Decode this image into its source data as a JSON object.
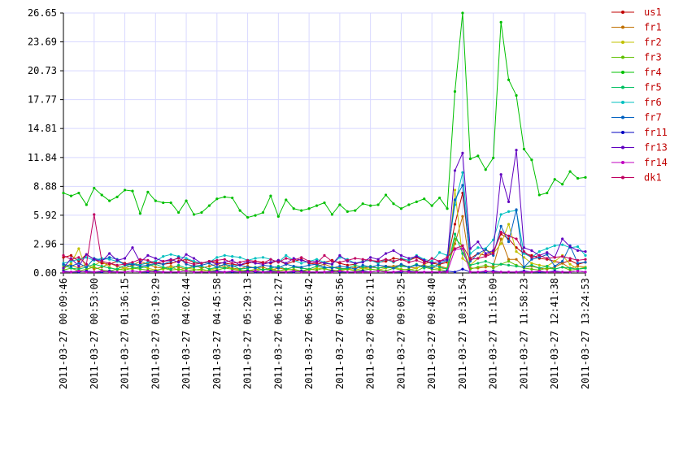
{
  "chart_data": {
    "type": "line",
    "categories": [
      "2011-03-27 00:09:46",
      null,
      null,
      null,
      "2011-03-27 00:53:00",
      null,
      null,
      null,
      "2011-03-27 01:36:15",
      null,
      null,
      null,
      "2011-03-27 03:19:29",
      null,
      null,
      null,
      "2011-03-27 04:02:44",
      null,
      null,
      null,
      "2011-03-27 04:45:58",
      null,
      null,
      null,
      "2011-03-27 05:29:13",
      null,
      null,
      null,
      "2011-03-27 06:12:27",
      null,
      null,
      null,
      "2011-03-27 06:55:42",
      null,
      null,
      null,
      "2011-03-27 07:38:56",
      null,
      null,
      null,
      "2011-03-27 08:22:11",
      null,
      null,
      null,
      "2011-03-27 09:05:25",
      null,
      null,
      null,
      "2011-03-27 09:48:40",
      null,
      null,
      null,
      "2011-03-27 10:31:54",
      null,
      null,
      null,
      "2011-03-27 11:15:09",
      null,
      null,
      null,
      "2011-03-27 11:58:23",
      null,
      null,
      null,
      "2011-03-27 12:41:38",
      null,
      null,
      null,
      "2011-03-27 13:24:53"
    ],
    "ylim": [
      0,
      26.65
    ],
    "yticks": [
      {
        "value": 0,
        "label": "0.00"
      },
      2.96,
      5.92,
      8.88,
      11.84,
      14.81,
      17.77,
      20.73,
      23.69,
      26.65
    ],
    "grid": true,
    "series": [
      {
        "name": "us1",
        "color": "#c00000",
        "values": [
          1.6,
          1.8,
          1.2,
          1.9,
          1.4,
          1.0,
          0.9,
          1.2,
          1.0,
          0.8,
          0.9,
          1.0,
          1.1,
          0.9,
          1.0,
          1.2,
          1.4,
          1.1,
          1.0,
          1.2,
          1.1,
          1.0,
          0.9,
          0.8,
          1.0,
          1.2,
          1.1,
          1.0,
          1.3,
          0.9,
          1.2,
          1.4,
          1.0,
          0.9,
          1.1,
          1.3,
          1.0,
          0.8,
          0.9,
          1.2,
          1.3,
          1.1,
          1.2,
          1.5,
          1.4,
          1.3,
          1.6,
          1.2,
          1.0,
          0.9,
          1.1,
          5.0,
          8.2,
          1.5,
          2.0,
          1.8,
          2.2,
          4.0,
          3.5,
          2.6,
          2.0,
          1.8,
          1.5,
          1.4,
          1.2,
          1.0,
          1.3,
          0.9,
          1.1
        ]
      },
      {
        "name": "fr1",
        "color": "#c07000",
        "values": [
          0.6,
          0.8,
          0.5,
          0.9,
          0.4,
          0.6,
          1.0,
          0.7,
          0.5,
          0.8,
          1.2,
          0.9,
          0.6,
          0.5,
          0.7,
          0.6,
          0.4,
          0.8,
          0.5,
          0.7,
          0.9,
          0.6,
          0.5,
          0.4,
          0.7,
          0.5,
          0.6,
          0.3,
          0.5,
          0.4,
          0.6,
          0.5,
          0.4,
          0.7,
          0.9,
          0.6,
          0.5,
          0.4,
          0.6,
          0.5,
          0.6,
          0.5,
          0.7,
          0.7,
          0.8,
          0.6,
          0.5,
          0.9,
          1.2,
          0.7,
          0.5,
          3.0,
          5.8,
          0.5,
          0.5,
          0.6,
          0.7,
          3.5,
          1.4,
          1.4,
          0.6,
          0.7,
          0.5,
          0.4,
          0.6,
          1.0,
          0.5,
          0.7,
          0.6
        ]
      },
      {
        "name": "fr2",
        "color": "#c0c000",
        "values": [
          0.4,
          1.0,
          2.5,
          0.3,
          0.8,
          1.2,
          0.6,
          0.3,
          0.5,
          0.4,
          0.7,
          0.5,
          0.3,
          0.4,
          0.6,
          0.3,
          0.5,
          0.4,
          0.2,
          0.3,
          0.5,
          0.9,
          0.4,
          0.3,
          0.2,
          0.4,
          0.3,
          0.5,
          0.2,
          0.3,
          0.4,
          0.2,
          0.3,
          0.5,
          0.4,
          0.3,
          0.2,
          0.4,
          0.3,
          0.5,
          0.4,
          0.3,
          0.5,
          0.6,
          0.4,
          0.3,
          0.5,
          0.8,
          0.6,
          0.4,
          0.5,
          8.5,
          1.5,
          0.8,
          1.5,
          2.4,
          2.0,
          3.0,
          5.0,
          2.2,
          1.6,
          1.0,
          0.8,
          0.7,
          1.2,
          1.8,
          0.9,
          0.4,
          0.6
        ]
      },
      {
        "name": "fr3",
        "color": "#60c000",
        "values": [
          0.3,
          0.5,
          0.2,
          0.4,
          0.6,
          0.3,
          0.2,
          0.4,
          0.3,
          0.5,
          0.4,
          0.3,
          0.2,
          0.5,
          0.3,
          0.4,
          0.2,
          0.3,
          0.4,
          0.2,
          0.3,
          0.5,
          0.4,
          0.2,
          0.3,
          0.2,
          0.4,
          0.3,
          0.2,
          0.4,
          0.3,
          0.2,
          0.4,
          0.3,
          0.5,
          0.2,
          0.3,
          0.4,
          0.2,
          0.3,
          0.4,
          0.3,
          0.2,
          0.5,
          0.3,
          0.4,
          0.2,
          0.6,
          0.4,
          0.3,
          0.2,
          3.5,
          2.8,
          0.4,
          0.6,
          0.8,
          0.5,
          0.9,
          1.2,
          0.8,
          0.5,
          0.4,
          0.3,
          0.5,
          0.4,
          0.6,
          0.3,
          0.4,
          0.5
        ]
      },
      {
        "name": "fr4",
        "color": "#00c000",
        "values": [
          8.2,
          7.9,
          8.2,
          7.0,
          8.7,
          8.0,
          7.4,
          7.8,
          8.5,
          8.4,
          6.1,
          8.3,
          7.4,
          7.2,
          7.2,
          6.2,
          7.4,
          6.0,
          6.2,
          6.9,
          7.6,
          7.8,
          7.7,
          6.4,
          5.7,
          5.9,
          6.2,
          7.9,
          5.8,
          7.5,
          6.6,
          6.4,
          6.6,
          6.9,
          7.2,
          6.0,
          7.0,
          6.3,
          6.4,
          7.1,
          6.9,
          7.0,
          8.0,
          7.1,
          6.6,
          7.0,
          7.3,
          7.6,
          6.9,
          7.7,
          6.6,
          18.6,
          26.65,
          11.7,
          12.0,
          10.6,
          11.8,
          25.7,
          19.8,
          18.2,
          12.7,
          11.6,
          8.0,
          8.2,
          9.6,
          9.1,
          10.4,
          9.7,
          9.8
        ]
      },
      {
        "name": "fr5",
        "color": "#00c060",
        "values": [
          0.8,
          0.5,
          0.4,
          0.6,
          0.9,
          0.7,
          0.5,
          0.4,
          0.8,
          0.6,
          0.5,
          0.7,
          0.9,
          0.6,
          0.4,
          0.8,
          0.5,
          0.6,
          0.7,
          0.4,
          0.6,
          0.5,
          0.8,
          0.4,
          0.5,
          0.6,
          0.3,
          0.5,
          0.7,
          0.4,
          0.6,
          0.5,
          0.4,
          0.7,
          0.5,
          0.6,
          0.4,
          0.5,
          0.8,
          0.6,
          0.7,
          0.5,
          0.6,
          0.5,
          0.7,
          0.6,
          0.9,
          0.5,
          0.8,
          0.6,
          0.4,
          4.0,
          2.0,
          0.8,
          1.0,
          1.2,
          0.9,
          0.9,
          0.8,
          0.7,
          0.6,
          0.8,
          0.5,
          0.7,
          0.4,
          0.6,
          0.5,
          0.4,
          0.5
        ]
      },
      {
        "name": "fr6",
        "color": "#00c0c0",
        "values": [
          1.0,
          1.2,
          1.4,
          1.6,
          1.3,
          1.5,
          1.4,
          1.2,
          0.9,
          1.0,
          0.8,
          1.1,
          1.2,
          1.7,
          1.9,
          1.7,
          1.5,
          1.2,
          1.0,
          1.1,
          1.6,
          1.8,
          1.7,
          1.6,
          1.3,
          1.5,
          1.6,
          1.4,
          1.1,
          1.8,
          1.3,
          1.0,
          1.2,
          1.4,
          1.1,
          0.9,
          1.6,
          1.4,
          1.0,
          1.2,
          1.3,
          1.0,
          1.4,
          1.1,
          1.5,
          1.3,
          1.8,
          1.4,
          1.2,
          2.1,
          1.8,
          7.0,
          10.3,
          2.0,
          2.6,
          2.5,
          3.4,
          6.0,
          6.3,
          6.4,
          2.0,
          1.6,
          2.2,
          2.5,
          2.8,
          2.9,
          2.6,
          2.7,
          1.8
        ]
      },
      {
        "name": "fr7",
        "color": "#0060c0",
        "values": [
          0.9,
          0.7,
          1.0,
          0.6,
          1.5,
          1.3,
          1.6,
          1.4,
          0.8,
          0.9,
          0.7,
          0.8,
          1.0,
          0.9,
          1.2,
          1.6,
          0.9,
          0.7,
          0.8,
          1.0,
          0.6,
          0.9,
          0.7,
          0.8,
          0.6,
          0.5,
          0.8,
          0.7,
          0.5,
          0.9,
          0.7,
          0.6,
          0.8,
          0.9,
          0.6,
          0.5,
          0.7,
          0.6,
          0.4,
          0.8,
          0.6,
          0.8,
          0.7,
          0.5,
          0.9,
          0.6,
          0.8,
          0.7,
          0.5,
          1.0,
          1.3,
          7.5,
          9.0,
          1.2,
          2.0,
          2.4,
          1.8,
          4.8,
          3.2,
          6.5,
          0.6,
          1.4,
          1.6,
          1.9,
          0.7,
          1.2,
          2.8,
          1.0,
          1.1
        ]
      },
      {
        "name": "fr11",
        "color": "#0000c0",
        "values": [
          0.2,
          0.1,
          0.1,
          0.2,
          0.1,
          0.1,
          0.2,
          0.1,
          0.1,
          0.2,
          0.1,
          0.1,
          0.2,
          0.1,
          0.1,
          0.1,
          0.2,
          0.1,
          0.1,
          0.1,
          0.2,
          0.1,
          0.1,
          0.1,
          0.2,
          0.1,
          0.1,
          0.2,
          0.1,
          0.1,
          0.1,
          0.2,
          0.1,
          0.1,
          0.1,
          0.2,
          0.1,
          0.1,
          0.1,
          0.2,
          0.1,
          0.2,
          0.1,
          0.1,
          0.1,
          0.2,
          0.1,
          0.1,
          0.1,
          0.1,
          0.2,
          0.1,
          0.4,
          0.1,
          0.1,
          0.1,
          0.2,
          0.1,
          0.1,
          0.1,
          0.2,
          0.1,
          0.1,
          0.1,
          0.2,
          0.1,
          0.1,
          0.2,
          0.1
        ]
      },
      {
        "name": "fr13",
        "color": "#6000c0",
        "values": [
          0.5,
          1.5,
          0.7,
          1.9,
          1.4,
          1.2,
          2.0,
          1.3,
          1.5,
          2.6,
          1.1,
          1.8,
          1.5,
          1.2,
          1.4,
          1.1,
          1.9,
          1.5,
          1.0,
          1.2,
          0.9,
          1.1,
          1.3,
          0.8,
          1.2,
          1.0,
          0.9,
          1.1,
          1.3,
          1.0,
          1.5,
          1.3,
          1.1,
          1.2,
          1.0,
          0.9,
          1.8,
          1.2,
          1.0,
          1.1,
          1.6,
          1.4,
          2.0,
          2.3,
          1.8,
          1.5,
          1.7,
          1.3,
          1.0,
          1.2,
          1.4,
          10.5,
          12.3,
          2.5,
          3.2,
          2.0,
          2.3,
          10.1,
          7.3,
          12.6,
          2.6,
          2.3,
          1.8,
          2.1,
          1.6,
          3.5,
          2.7,
          2.3,
          2.2
        ]
      },
      {
        "name": "fr14",
        "color": "#c000c0",
        "values": [
          0.1,
          0.1,
          0.2,
          0.1,
          0.1,
          0.2,
          0.1,
          0.1,
          0.1,
          0.2,
          0.1,
          0.2,
          0.1,
          0.1,
          0.1,
          0.1,
          0.2,
          0.1,
          0.1,
          0.1,
          0.1,
          0.1,
          0.2,
          0.1,
          0.1,
          0.2,
          0.1,
          0.1,
          0.1,
          0.1,
          0.2,
          0.1,
          0.1,
          0.1,
          0.1,
          0.1,
          0.2,
          0.1,
          0.1,
          0.1,
          0.1,
          0.2,
          0.1,
          0.1,
          0.2,
          0.1,
          0.1,
          0.1,
          0.1,
          0.1,
          0.1,
          2.4,
          2.5,
          0.1,
          0.1,
          0.2,
          0.1,
          0.1,
          0.1,
          0.1,
          0.1,
          0.1,
          0.2,
          0.1,
          0.1,
          0.1,
          0.1,
          0.2,
          0.1
        ]
      },
      {
        "name": "dk1",
        "color": "#c00060",
        "values": [
          1.8,
          1.4,
          1.6,
          0.9,
          6.0,
          1.2,
          1.0,
          0.8,
          0.9,
          1.1,
          1.4,
          1.3,
          1.0,
          1.2,
          1.3,
          1.5,
          1.1,
          0.9,
          1.0,
          1.2,
          1.3,
          1.4,
          1.0,
          1.1,
          1.3,
          1.2,
          1.0,
          1.4,
          1.1,
          1.5,
          1.3,
          1.6,
          1.2,
          1.0,
          1.8,
          1.2,
          1.1,
          1.3,
          1.5,
          1.4,
          1.3,
          1.2,
          1.4,
          1.2,
          1.4,
          1.1,
          1.3,
          1.0,
          1.5,
          1.2,
          1.6,
          2.5,
          2.8,
          1.4,
          1.5,
          1.7,
          2.0,
          4.2,
          3.8,
          3.5,
          2.2,
          1.6,
          1.8,
          1.5,
          1.6,
          1.7,
          1.5,
          1.3,
          1.4
        ]
      }
    ]
  }
}
